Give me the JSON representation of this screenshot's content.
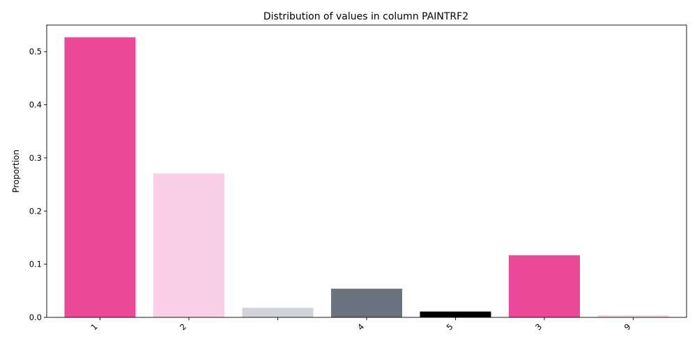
{
  "chart_data": {
    "type": "bar",
    "title": "Distribution of values in column PAINTRF2",
    "xlabel": "",
    "ylabel": "Proportion",
    "categories": [
      "1",
      "2",
      "",
      "4",
      "5",
      "3",
      "9"
    ],
    "values": [
      0.527,
      0.271,
      0.018,
      0.054,
      0.011,
      0.117,
      0.004
    ],
    "colors": [
      "#ec4899",
      "#fbcfe8",
      "#d1d5db",
      "#6b7280",
      "#000000",
      "#ec4899",
      "#fbcfe8"
    ],
    "ylim": [
      0,
      0.55
    ],
    "yticks": [
      0.0,
      0.1,
      0.2,
      0.3,
      0.4,
      0.5
    ],
    "ytick_labels": [
      "0.0",
      "0.1",
      "0.2",
      "0.3",
      "0.4",
      "0.5"
    ],
    "grid": false,
    "legend": false
  }
}
